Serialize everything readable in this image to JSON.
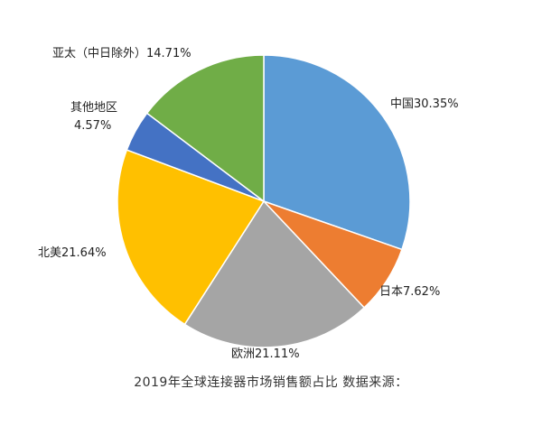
{
  "caption": "2019年全球连接器市场销售额占比 数据来源：",
  "chart_data": {
    "type": "pie",
    "start_angle_deg": 0,
    "direction": "clockwise",
    "slices": [
      {
        "name": "中国",
        "label": "中国30.35%",
        "value": 30.35,
        "color": "#5b9bd5"
      },
      {
        "name": "日本",
        "label": "日本7.62%",
        "value": 7.62,
        "color": "#ed7d31"
      },
      {
        "name": "欧洲",
        "label": "欧洲21.11%",
        "value": 21.11,
        "color": "#a5a5a5"
      },
      {
        "name": "北美",
        "label": "北美21.64%",
        "value": 21.64,
        "color": "#ffc000"
      },
      {
        "name": "其他地区",
        "label": "其他地区",
        "pct_text": "4.57%",
        "value": 4.57,
        "color": "#4472c4"
      },
      {
        "name": "亚太（中日除外）",
        "label": "亚太（中日除外）14.71%",
        "value": 14.71,
        "color": "#70ad47"
      }
    ]
  }
}
